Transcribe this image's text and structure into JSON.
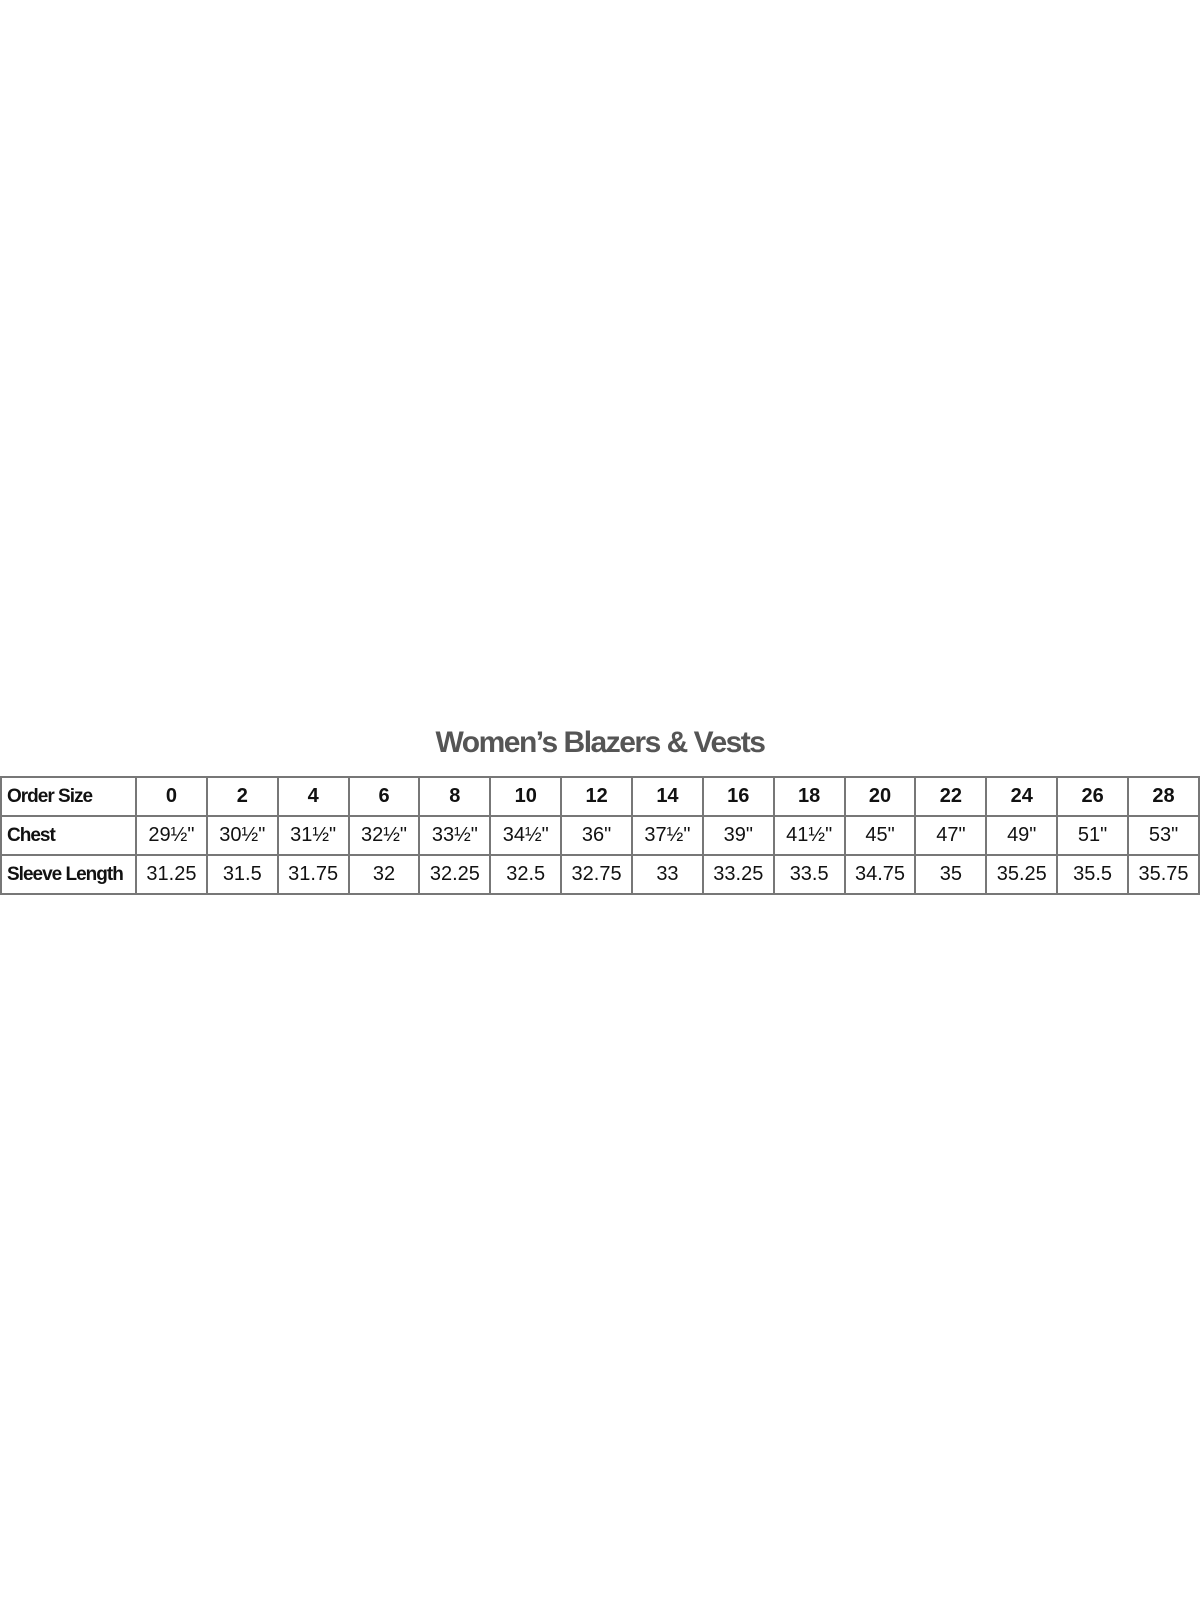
{
  "title": "Women’s Blazers & Vests",
  "table": {
    "rows": [
      {
        "label": "Order Size",
        "values": [
          "0",
          "2",
          "4",
          "6",
          "8",
          "10",
          "12",
          "14",
          "16",
          "18",
          "20",
          "22",
          "24",
          "26",
          "28"
        ]
      },
      {
        "label": "Chest",
        "values": [
          "29½\"",
          "30½\"",
          "31½\"",
          "32½\"",
          "33½\"",
          "34½\"",
          "36\"",
          "37½\"",
          "39\"",
          "41½\"",
          "45\"",
          "47\"",
          "49\"",
          "51\"",
          "53\""
        ]
      },
      {
        "label": "Sleeve Length",
        "values": [
          "31.25",
          "31.5",
          "31.75",
          "32",
          "32.25",
          "32.5",
          "32.75",
          "33",
          "33.25",
          "33.5",
          "34.75",
          "35",
          "35.25",
          "35.5",
          "35.75"
        ]
      }
    ]
  }
}
